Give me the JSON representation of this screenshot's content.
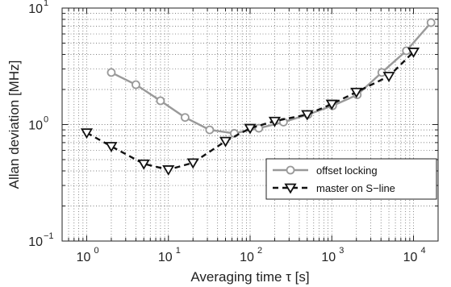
{
  "chart_data": {
    "type": "line",
    "xscale": "log",
    "yscale": "log",
    "xlim": [
      0.5,
      20000
    ],
    "ylim": [
      0.1,
      10
    ],
    "xlabel": "Averaging time  τ [s]",
    "ylabel": "Allan deviation [MHz]",
    "grid": true,
    "legend_position": "center-right",
    "x_ticks": [
      {
        "base": "10",
        "exp": "0"
      },
      {
        "base": "10",
        "exp": "1"
      },
      {
        "base": "10",
        "exp": "2"
      },
      {
        "base": "10",
        "exp": "3"
      },
      {
        "base": "10",
        "exp": "4"
      }
    ],
    "y_ticks": [
      {
        "base": "10",
        "exp": "−1"
      },
      {
        "base": "10",
        "exp": "0"
      },
      {
        "base": "10",
        "exp": "1"
      }
    ],
    "series": [
      {
        "name": "offset locking",
        "color": "#999999",
        "line_style": "solid",
        "marker": "circle",
        "x": [
          2,
          4,
          8,
          16,
          32,
          64,
          128,
          256,
          512,
          1024,
          2048,
          4096,
          8192,
          16384
        ],
        "y": [
          2.8,
          2.2,
          1.6,
          1.15,
          0.9,
          0.84,
          0.93,
          1.05,
          1.22,
          1.45,
          1.8,
          2.8,
          4.3,
          7.5
        ]
      },
      {
        "name": "master on S−line",
        "color": "#111111",
        "line_style": "dashed",
        "marker": "triangle-down",
        "x": [
          1,
          2,
          5,
          10,
          20,
          50,
          100,
          200,
          500,
          1000,
          2000,
          5000,
          10000
        ],
        "y": [
          0.85,
          0.65,
          0.46,
          0.41,
          0.47,
          0.72,
          0.93,
          1.07,
          1.22,
          1.5,
          1.9,
          2.6,
          4.2
        ]
      }
    ]
  }
}
